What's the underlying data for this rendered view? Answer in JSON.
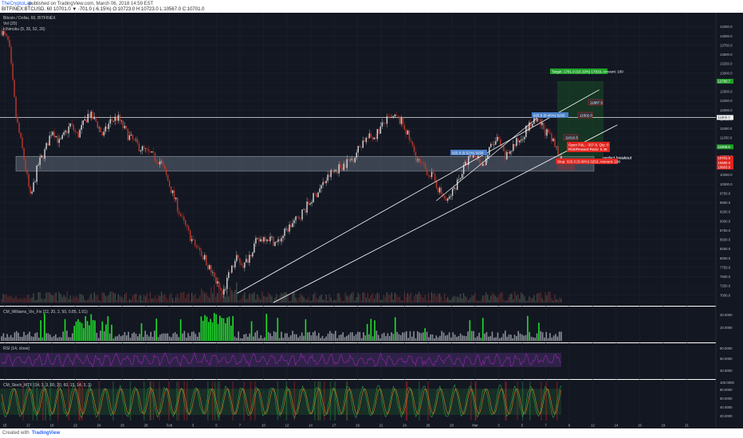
{
  "header": {
    "author": "TheCryptoLab",
    "published_prefix": "published on TradingView.com, March 06, 2018 14:59 EST",
    "symbol_line": "BITFINEX:BTCUSD, 60  10701.0 ▼ -701.0 (-6.15%)  O:10723.0  H:10723.0  L:10567.0  C:10701.0"
  },
  "legend": {
    "title": "Bitcoin / Dollar, 60, BITFINEX",
    "vol": "Vol (20)",
    "ribbon": "Ichimoku (9, 26, 52, 26)"
  },
  "footer": {
    "created_with": "Created with",
    "brand": "TradingView"
  },
  "panes": {
    "williams": "CM_Williams_Vix_Fix (22, 20, 2, 50, 0.85, 1.01)",
    "rsi": "RSI (14, close)",
    "stoch": "CM_Stoch_MTF (14, 3, 3, 80, 20, 60, 15, 14, 3, 3)"
  },
  "annotations": {
    "target": "Target: 1781.9 (16.19%) 17819, Amount: 100",
    "label_11887": "11887.5",
    "label_11502": "11502.0",
    "label_11010": "11010.5",
    "channel1": "925.6 (8.46%) 9256",
    "channel2": "925.6 (9.52%) 9256",
    "open_pl": "Open P&L: -307.8, Qty: 0",
    "risk_reward": "Risk/Reward Ratio: 5.48",
    "perfect": "perfect breakout",
    "stop": "Stop: 325.3 (3.00%) 3253, Amount: 100"
  },
  "price_axis": {
    "ticks": [
      "14250.0",
      "14000.0",
      "13750.0",
      "13500.0",
      "13250.0",
      "13000.0",
      "12750.0",
      "12500.0",
      "12250.0",
      "12000.0",
      "11750.0",
      "11500.0",
      "11250.0",
      "11000.0",
      "10750.0",
      "10500.0",
      "10250.0",
      "10000.0",
      "9750.0",
      "9500.0",
      "9250.0",
      "9000.0",
      "8750.0",
      "8500.0",
      "8250.0",
      "8000.0",
      "7750.0",
      "7500.0",
      "7250.0",
      "7000.0"
    ],
    "badges": [
      {
        "label": "12780.7",
        "color": "#1fa02a"
      },
      {
        "label": "11800.0",
        "color": "#ffffff"
      },
      {
        "label": "11008.8",
        "color": "#1fa02a"
      },
      {
        "label": "10701.0",
        "color": "#e0251f"
      },
      {
        "label": "10680.0",
        "color": "#e0251f"
      },
      {
        "label": "10603.8",
        "color": "#e0251f"
      }
    ]
  },
  "pane_axes": {
    "williams": [
      "20.0000",
      "10.0000"
    ],
    "rsi": [
      "80.0000",
      "60.0000",
      "40.0000"
    ],
    "stoch": [
      "100.0000",
      "80.0000",
      "60.0000",
      "40.0000",
      "20.0000"
    ]
  },
  "chart_data": {
    "type": "candlestick",
    "title": "Bitcoin / Dollar, 60, BITFINEX",
    "x_ticks": [
      "15",
      "17",
      "19",
      "22",
      "24",
      "26",
      "29",
      "Feb",
      "3",
      "5",
      "7",
      "10",
      "12",
      "14",
      "17",
      "19",
      "21",
      "24",
      "26",
      "28",
      "Mar",
      "3",
      "5",
      "7",
      "9",
      "12",
      "14",
      "16",
      "19",
      "21"
    ],
    "ylim": [
      6800,
      14500
    ],
    "price_path": [
      [
        0,
        14150
      ],
      [
        4,
        13800
      ],
      [
        8,
        11800
      ],
      [
        12,
        10800
      ],
      [
        16,
        9600
      ],
      [
        20,
        10500
      ],
      [
        24,
        10900
      ],
      [
        28,
        11500
      ],
      [
        32,
        11100
      ],
      [
        38,
        11600
      ],
      [
        42,
        11300
      ],
      [
        48,
        11900
      ],
      [
        52,
        11700
      ],
      [
        56,
        11300
      ],
      [
        60,
        11700
      ],
      [
        64,
        11800
      ],
      [
        70,
        11300
      ],
      [
        76,
        11000
      ],
      [
        82,
        10800
      ],
      [
        88,
        10600
      ],
      [
        94,
        9800
      ],
      [
        100,
        9000
      ],
      [
        106,
        8400
      ],
      [
        112,
        8000
      ],
      [
        118,
        7400
      ],
      [
        122,
        7000
      ],
      [
        126,
        7600
      ],
      [
        130,
        8000
      ],
      [
        134,
        7800
      ],
      [
        140,
        8400
      ],
      [
        146,
        8600
      ],
      [
        152,
        8400
      ],
      [
        158,
        8800
      ],
      [
        164,
        9100
      ],
      [
        170,
        9500
      ],
      [
        176,
        9900
      ],
      [
        182,
        10300
      ],
      [
        188,
        10500
      ],
      [
        194,
        10700
      ],
      [
        200,
        11200
      ],
      [
        206,
        11300
      ],
      [
        212,
        11700
      ],
      [
        218,
        11800
      ],
      [
        222,
        11600
      ],
      [
        226,
        11100
      ],
      [
        230,
        10600
      ],
      [
        234,
        10400
      ],
      [
        238,
        10200
      ],
      [
        242,
        9800
      ],
      [
        246,
        9500
      ],
      [
        250,
        9900
      ],
      [
        254,
        10300
      ],
      [
        258,
        10700
      ],
      [
        262,
        10800
      ],
      [
        266,
        10500
      ],
      [
        270,
        11000
      ],
      [
        274,
        11200
      ],
      [
        278,
        10700
      ],
      [
        282,
        11000
      ],
      [
        286,
        11200
      ],
      [
        290,
        11500
      ],
      [
        294,
        11700
      ],
      [
        298,
        11600
      ],
      [
        302,
        11300
      ],
      [
        306,
        11000
      ],
      [
        309,
        10701
      ]
    ],
    "channel_lines": [
      {
        "from": [
          130,
          7050
        ],
        "to": [
          330,
          12550
        ]
      },
      {
        "from": [
          150,
          6800
        ],
        "to": [
          340,
          11600
        ]
      }
    ],
    "horizontal_level": 11800,
    "support_zone": [
      10350,
      10750
    ]
  }
}
